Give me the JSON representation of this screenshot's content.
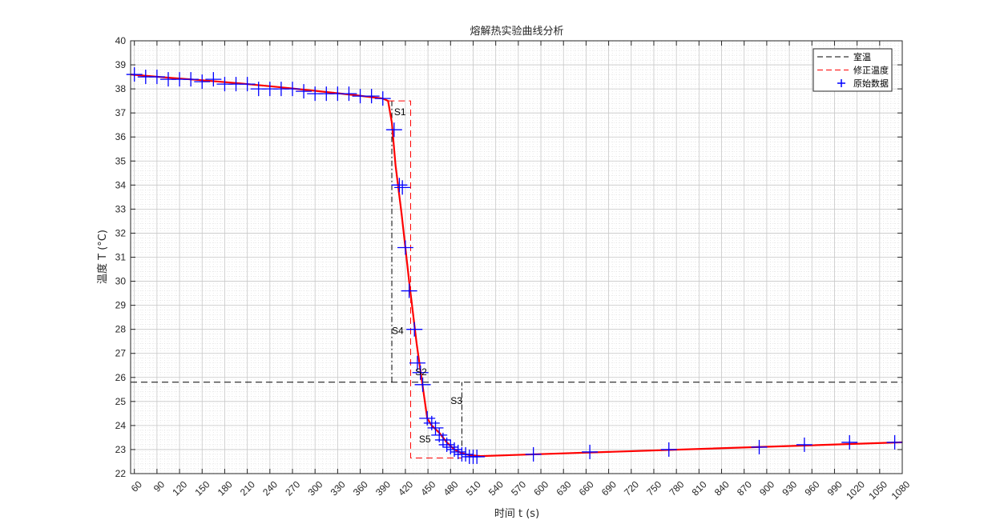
{
  "chart_data": {
    "type": "line",
    "title": "熔解热实验曲线分析",
    "xlabel": "时间 t (s)",
    "ylabel": "温度 T (°C)",
    "xlim": [
      55,
      1080
    ],
    "ylim": [
      22,
      40
    ],
    "xticks": [
      60,
      90,
      120,
      150,
      180,
      210,
      240,
      270,
      300,
      330,
      360,
      390,
      420,
      450,
      480,
      510,
      540,
      570,
      600,
      630,
      660,
      690,
      720,
      750,
      780,
      810,
      840,
      870,
      900,
      930,
      960,
      990,
      1020,
      1050,
      1080
    ],
    "yticks": [
      22,
      23,
      24,
      25,
      26,
      27,
      28,
      29,
      30,
      31,
      32,
      33,
      34,
      35,
      36,
      37,
      38,
      39,
      40
    ],
    "grid": "major and minor",
    "legend": {
      "placement": "top-right",
      "entries": [
        {
          "label": "室温",
          "style": "black dashed line"
        },
        {
          "label": "修正温度",
          "style": "red dashed line"
        },
        {
          "label": "原始数据",
          "style": "blue plus marker"
        }
      ]
    },
    "room_temperature": 25.8,
    "series": [
      {
        "name": "原始数据",
        "color": "#0000ff",
        "marker": "plus",
        "x": [
          60,
          75,
          90,
          105,
          120,
          135,
          150,
          165,
          180,
          195,
          210,
          225,
          240,
          255,
          270,
          285,
          300,
          315,
          330,
          345,
          360,
          375,
          390,
          405,
          412,
          416,
          420,
          425,
          432,
          436,
          440,
          443,
          449,
          455,
          460,
          465,
          470,
          475,
          480,
          485,
          490,
          495,
          500,
          505,
          510,
          515,
          590,
          665,
          770,
          890,
          950,
          1010,
          1070
        ],
        "y": [
          38.6,
          38.5,
          38.5,
          38.4,
          38.4,
          38.4,
          38.3,
          38.4,
          38.2,
          38.2,
          38.2,
          38.0,
          38.0,
          38.0,
          38.0,
          37.9,
          37.8,
          37.8,
          37.8,
          37.8,
          37.7,
          37.7,
          37.6,
          36.3,
          34.0,
          33.9,
          31.4,
          29.6,
          28.0,
          26.6,
          26.2,
          25.7,
          24.3,
          24.1,
          23.9,
          23.6,
          23.4,
          23.2,
          23.1,
          23.0,
          22.9,
          22.8,
          22.8,
          22.7,
          22.7,
          22.7,
          22.8,
          22.9,
          23.0,
          23.1,
          23.2,
          23.3,
          23.3
        ]
      },
      {
        "name": "fit",
        "color": "#ff0000",
        "x": [
          55,
          100,
          150,
          200,
          250,
          300,
          350,
          390,
          397,
          402,
          407,
          415,
          425,
          435,
          444,
          449,
          455,
          465,
          475,
          485,
          495,
          505,
          520,
          1080
        ],
        "y": [
          38.6,
          38.48,
          38.36,
          38.23,
          38.08,
          37.92,
          37.75,
          37.6,
          37.5,
          36.6,
          34.8,
          32.8,
          30.0,
          27.4,
          25.4,
          24.3,
          24.0,
          23.7,
          23.3,
          23.0,
          22.85,
          22.77,
          22.73,
          23.3
        ]
      },
      {
        "name": "修正温度",
        "color": "#ff0000",
        "style": "dashed",
        "x": [
          397,
          427,
          427,
          495
        ],
        "y": [
          37.5,
          37.5,
          22.65,
          22.65
        ]
      }
    ],
    "reference_lines": [
      {
        "orientation": "vertical",
        "x": 402,
        "from": 25.8,
        "to": 37.5,
        "style": "black dash-dot"
      },
      {
        "orientation": "vertical",
        "x": 495,
        "from": 22.65,
        "to": 25.8,
        "style": "black dash-dot"
      }
    ],
    "annotations": [
      {
        "text": "S1",
        "x": 405,
        "y": 36.9
      },
      {
        "text": "S2",
        "x": 433,
        "y": 26.1
      },
      {
        "text": "S3",
        "x": 480,
        "y": 24.9
      },
      {
        "text": "S4",
        "x": 402,
        "y": 27.8
      },
      {
        "text": "S5",
        "x": 438,
        "y": 23.3
      }
    ]
  }
}
